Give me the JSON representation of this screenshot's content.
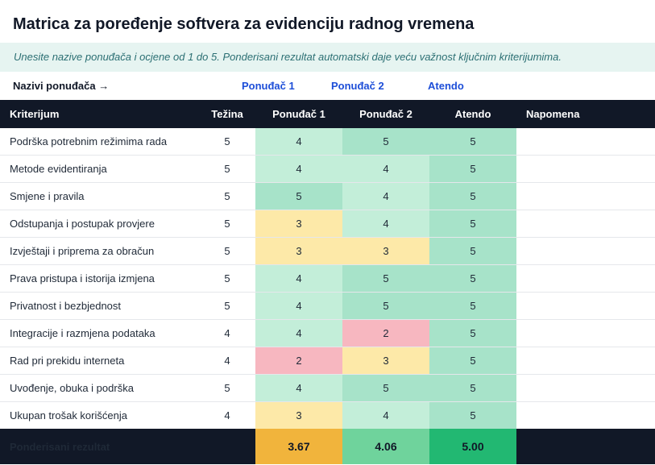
{
  "title": "Matrica za poređenje softvera za evidenciju radnog vremena",
  "instructions": "Unesite nazive ponuđača i ocjene od 1 do 5. Ponderisani rezultat automatski daje veću važnost ključnim kriterijumima.",
  "vendor_names_label": "Nazivi ponuđača →",
  "vendors": [
    "Ponuđač 1",
    "Ponuđač 2",
    "Atendo"
  ],
  "headers": {
    "criterion": "Kriterijum",
    "weight": "Težina",
    "vendor1": "Ponuđač 1",
    "vendor2": "Ponuđač 2",
    "vendor3": "Atendo",
    "note": "Napomena"
  },
  "rows": [
    {
      "criterion": "Podrška potrebnim režimima rada",
      "weight": "5",
      "s1": "4",
      "s2": "5",
      "s3": "5",
      "note": ""
    },
    {
      "criterion": "Metode evidentiranja",
      "weight": "5",
      "s1": "4",
      "s2": "4",
      "s3": "5",
      "note": ""
    },
    {
      "criterion": "Smjene i pravila",
      "weight": "5",
      "s1": "5",
      "s2": "4",
      "s3": "5",
      "note": ""
    },
    {
      "criterion": "Odstupanja i postupak provjere",
      "weight": "5",
      "s1": "3",
      "s2": "4",
      "s3": "5",
      "note": ""
    },
    {
      "criterion": "Izvještaji i priprema za obračun",
      "weight": "5",
      "s1": "3",
      "s2": "3",
      "s3": "5",
      "note": ""
    },
    {
      "criterion": "Prava pristupa i istorija izmjena",
      "weight": "5",
      "s1": "4",
      "s2": "5",
      "s3": "5",
      "note": ""
    },
    {
      "criterion": "Privatnost i bezbjednost",
      "weight": "5",
      "s1": "4",
      "s2": "5",
      "s3": "5",
      "note": ""
    },
    {
      "criterion": "Integracije i razmjena podataka",
      "weight": "4",
      "s1": "4",
      "s2": "2",
      "s3": "5",
      "note": ""
    },
    {
      "criterion": "Rad pri prekidu interneta",
      "weight": "4",
      "s1": "2",
      "s2": "3",
      "s3": "5",
      "note": ""
    },
    {
      "criterion": "Uvođenje, obuka i podrška",
      "weight": "5",
      "s1": "4",
      "s2": "5",
      "s3": "5",
      "note": ""
    },
    {
      "criterion": "Ukupan trošak korišćenja",
      "weight": "4",
      "s1": "3",
      "s2": "4",
      "s3": "5",
      "note": ""
    }
  ],
  "totals": {
    "label": "Ponderisani rezultat",
    "v1": "3.67",
    "v2": "4.06",
    "v3": "5.00"
  },
  "colors": {
    "header_bg": "#111827",
    "score_5": "#a7e3c9",
    "score_4": "#c3eed9",
    "score_3": "#fde9a8",
    "score_2": "#f7b7c0",
    "total_low": "#f1b43c",
    "total_mid": "#6fd39c",
    "total_high": "#22b872",
    "accent": "#1d4ed8"
  }
}
